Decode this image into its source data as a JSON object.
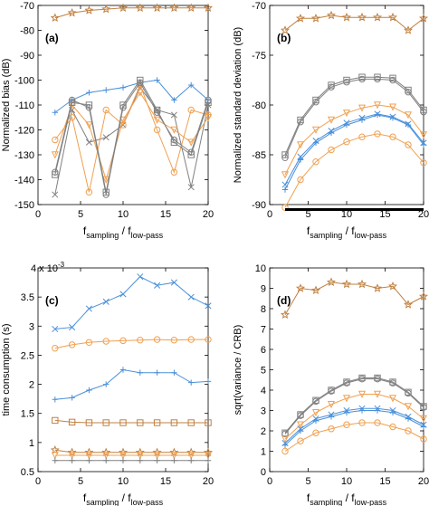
{
  "colors": {
    "blue": "#4a90d9",
    "orange": "#f0a050",
    "gray": "#808080",
    "tan": "#c08040",
    "black": "#000000"
  },
  "chart_data": [
    {
      "type": "line",
      "panel_label": "(a)",
      "xlabel_main": "f",
      "xlabel_sub1": "sampling",
      "xlabel_mid": " / f",
      "xlabel_sub2": "low-pass",
      "ylabel": "Normalized bias (dB)",
      "xlim": [
        0,
        20
      ],
      "ylim": [
        -150,
        -70
      ],
      "xticks": [
        0,
        5,
        10,
        15,
        20
      ],
      "yticks": [
        -150,
        -140,
        -130,
        -120,
        -110,
        -100,
        -90,
        -80,
        -70
      ],
      "exponent_label": "",
      "series": [
        {
          "color": "tan",
          "marker": "star",
          "x": [
            2,
            4,
            6,
            8,
            10,
            12,
            14,
            16,
            18,
            20
          ],
          "y": [
            -75,
            -73,
            -72,
            -71.5,
            -71,
            -71,
            -71,
            -71,
            -71,
            -71
          ]
        },
        {
          "color": "blue",
          "marker": "plus",
          "x": [
            2,
            4,
            6,
            8,
            10,
            12,
            14,
            16,
            18,
            20
          ],
          "y": [
            -113,
            -108,
            -105,
            -104,
            -103,
            -101,
            -100,
            -108,
            -102,
            -108
          ]
        },
        {
          "color": "gray",
          "marker": "x",
          "x": [
            2,
            4,
            6,
            8,
            10,
            12,
            14,
            16,
            18,
            20
          ],
          "y": [
            -146,
            -112,
            -125,
            -123,
            -118,
            -103,
            -112,
            -114,
            -143,
            -110
          ]
        },
        {
          "color": "orange",
          "marker": "triangle",
          "x": [
            2,
            4,
            6,
            8,
            10,
            12,
            14,
            16,
            18,
            20
          ],
          "y": [
            -130,
            -110,
            -118,
            -140,
            -116,
            -105,
            -116,
            -120,
            -125,
            -115
          ]
        },
        {
          "color": "orange",
          "marker": "circle",
          "x": [
            2,
            4,
            6,
            8,
            10,
            12,
            14,
            16,
            18,
            20
          ],
          "y": [
            -124,
            -115,
            -145,
            -112,
            -118,
            -102,
            -120,
            -137,
            -112,
            -114
          ]
        },
        {
          "color": "gray",
          "marker": "square",
          "x": [
            2,
            4,
            6,
            8,
            10,
            12,
            14,
            16,
            18,
            20
          ],
          "y": [
            -138,
            -109,
            -110,
            -145,
            -110,
            -100,
            -112,
            -125,
            -130,
            -109
          ]
        },
        {
          "color": "gray",
          "marker": "circle",
          "x": [
            2,
            4,
            6,
            8,
            10,
            12,
            14,
            16,
            18,
            20
          ],
          "y": [
            -137,
            -108,
            -111,
            -146,
            -111,
            -101,
            -113,
            -124,
            -129,
            -108
          ]
        }
      ]
    },
    {
      "type": "line",
      "panel_label": "(b)",
      "xlabel_main": "f",
      "xlabel_sub1": "sampling",
      "xlabel_mid": " / f",
      "xlabel_sub2": "low-pass",
      "ylabel": "Normalized standard deviation (dB)",
      "xlim": [
        0,
        20
      ],
      "ylim": [
        -90,
        -70
      ],
      "xticks": [
        0,
        5,
        10,
        15,
        20
      ],
      "yticks": [
        -90,
        -85,
        -80,
        -75,
        -70
      ],
      "exponent_label": "",
      "series": [
        {
          "color": "tan",
          "marker": "star",
          "x": [
            2,
            4,
            6,
            8,
            10,
            12,
            14,
            16,
            18,
            20
          ],
          "y": [
            -72.5,
            -71.3,
            -71.3,
            -71.0,
            -71.2,
            -71.2,
            -71.2,
            -71.2,
            -72.5,
            -71.3
          ]
        },
        {
          "color": "gray",
          "marker": "square",
          "x": [
            2,
            4,
            6,
            8,
            10,
            12,
            14,
            16,
            18,
            20
          ],
          "y": [
            -85.0,
            -81.5,
            -79.5,
            -78.0,
            -77.5,
            -77.2,
            -77.2,
            -77.3,
            -78.5,
            -80.5
          ]
        },
        {
          "color": "gray",
          "marker": "circle",
          "x": [
            2,
            4,
            6,
            8,
            10,
            12,
            14,
            16,
            18,
            20
          ],
          "y": [
            -85.3,
            -81.7,
            -79.7,
            -78.2,
            -77.7,
            -77.4,
            -77.4,
            -77.5,
            -78.7,
            -80.7
          ]
        },
        {
          "color": "orange",
          "marker": "triangle",
          "x": [
            2,
            4,
            6,
            8,
            10,
            12,
            14,
            16,
            18,
            20
          ],
          "y": [
            -87.0,
            -84.0,
            -82.5,
            -81.5,
            -80.8,
            -80.3,
            -80.0,
            -80.2,
            -81.0,
            -83.0
          ]
        },
        {
          "color": "blue",
          "marker": "plus",
          "x": [
            2,
            4,
            6,
            8,
            10,
            12,
            14,
            16,
            18,
            20
          ],
          "y": [
            -88.5,
            -85.5,
            -83.8,
            -82.8,
            -82.0,
            -81.5,
            -81.0,
            -81.3,
            -82.0,
            -84.0
          ]
        },
        {
          "color": "blue",
          "marker": "x",
          "x": [
            2,
            4,
            6,
            8,
            10,
            12,
            14,
            16,
            18,
            20
          ],
          "y": [
            -88.0,
            -85.2,
            -83.6,
            -82.6,
            -81.8,
            -81.3,
            -80.9,
            -81.2,
            -81.9,
            -83.8
          ]
        },
        {
          "color": "orange",
          "marker": "circle",
          "x": [
            2,
            4,
            6,
            8,
            10,
            12,
            14,
            16,
            18,
            20
          ],
          "y": [
            -90.3,
            -87.5,
            -85.7,
            -84.5,
            -83.7,
            -83.2,
            -82.9,
            -83.2,
            -84.0,
            -85.8
          ]
        },
        {
          "color": "black",
          "marker": "none",
          "width": 3,
          "x": [
            2,
            20
          ],
          "y": [
            -90.5,
            -90.5
          ]
        }
      ]
    },
    {
      "type": "line",
      "panel_label": "(c)",
      "xlabel_main": "f",
      "xlabel_sub1": "sampling",
      "xlabel_mid": " / f",
      "xlabel_sub2": "low-pass",
      "ylabel": "time consumption (s)",
      "xlim": [
        0,
        20
      ],
      "ylim": [
        0.5,
        4
      ],
      "xticks": [
        0,
        5,
        10,
        15,
        20
      ],
      "yticks": [
        0.5,
        1,
        1.5,
        2,
        2.5,
        3,
        3.5,
        4
      ],
      "exponent_label": "4 x 10",
      "exponent_power": "-3",
      "series": [
        {
          "color": "blue",
          "marker": "x",
          "x": [
            2,
            4,
            6,
            8,
            10,
            12,
            14,
            16,
            18,
            20
          ],
          "y": [
            2.95,
            2.98,
            3.3,
            3.42,
            3.55,
            3.85,
            3.7,
            3.75,
            3.5,
            3.35
          ]
        },
        {
          "color": "orange",
          "marker": "circle",
          "x": [
            2,
            4,
            6,
            8,
            10,
            12,
            14,
            16,
            18,
            20
          ],
          "y": [
            2.62,
            2.68,
            2.72,
            2.74,
            2.75,
            2.76,
            2.77,
            2.76,
            2.77,
            2.77
          ]
        },
        {
          "color": "blue",
          "marker": "plus",
          "x": [
            2,
            4,
            6,
            8,
            10,
            12,
            14,
            16,
            18,
            20
          ],
          "y": [
            1.74,
            1.77,
            1.9,
            2.0,
            2.25,
            2.2,
            2.2,
            2.2,
            2.03,
            2.05
          ]
        },
        {
          "color": "tan",
          "marker": "square",
          "x": [
            2,
            4,
            6,
            8,
            10,
            12,
            14,
            16,
            18,
            20
          ],
          "y": [
            1.38,
            1.35,
            1.34,
            1.34,
            1.34,
            1.34,
            1.34,
            1.34,
            1.34,
            1.34
          ]
        },
        {
          "color": "tan",
          "marker": "star",
          "x": [
            2,
            4,
            6,
            8,
            10,
            12,
            14,
            16,
            18,
            20
          ],
          "y": [
            0.87,
            0.83,
            0.83,
            0.83,
            0.83,
            0.83,
            0.83,
            0.83,
            0.83,
            0.83
          ]
        },
        {
          "color": "orange",
          "marker": "triangle",
          "x": [
            2,
            4,
            6,
            8,
            10,
            12,
            14,
            16,
            18,
            20
          ],
          "y": [
            0.78,
            0.78,
            0.78,
            0.78,
            0.78,
            0.78,
            0.78,
            0.78,
            0.78,
            0.78
          ]
        },
        {
          "color": "gray",
          "marker": "plus",
          "x": [
            2,
            4,
            6,
            8,
            10,
            12,
            14,
            16,
            18,
            20
          ],
          "y": [
            0.69,
            0.69,
            0.69,
            0.69,
            0.69,
            0.69,
            0.69,
            0.69,
            0.69,
            0.69
          ]
        }
      ]
    },
    {
      "type": "line",
      "panel_label": "(d)",
      "xlabel_main": "f",
      "xlabel_sub1": "sampling",
      "xlabel_mid": " / f",
      "xlabel_sub2": "low-pass",
      "ylabel": "sqrt(variance / CRB)",
      "xlim": [
        0,
        20
      ],
      "ylim": [
        0,
        10
      ],
      "xticks": [
        0,
        5,
        10,
        15,
        20
      ],
      "yticks": [
        0,
        1,
        2,
        3,
        4,
        5,
        6,
        7,
        8,
        9,
        10
      ],
      "exponent_label": "",
      "series": [
        {
          "color": "tan",
          "marker": "star",
          "x": [
            2,
            4,
            6,
            8,
            10,
            12,
            14,
            16,
            18,
            20
          ],
          "y": [
            7.7,
            9.0,
            8.9,
            9.3,
            9.2,
            9.2,
            9.0,
            9.1,
            8.2,
            8.6
          ]
        },
        {
          "color": "gray",
          "marker": "square",
          "x": [
            2,
            4,
            6,
            8,
            10,
            12,
            14,
            16,
            18,
            20
          ],
          "y": [
            1.9,
            2.8,
            3.5,
            4.0,
            4.4,
            4.6,
            4.6,
            4.4,
            3.9,
            3.2
          ]
        },
        {
          "color": "gray",
          "marker": "circle",
          "x": [
            2,
            4,
            6,
            8,
            10,
            12,
            14,
            16,
            18,
            20
          ],
          "y": [
            1.85,
            2.75,
            3.45,
            3.95,
            4.35,
            4.55,
            4.55,
            4.35,
            3.85,
            3.15
          ]
        },
        {
          "color": "orange",
          "marker": "triangle",
          "x": [
            2,
            4,
            6,
            8,
            10,
            12,
            14,
            16,
            18,
            20
          ],
          "y": [
            1.6,
            2.3,
            2.9,
            3.3,
            3.6,
            3.8,
            3.8,
            3.6,
            3.2,
            2.6
          ]
        },
        {
          "color": "blue",
          "marker": "plus",
          "x": [
            2,
            4,
            6,
            8,
            10,
            12,
            14,
            16,
            18,
            20
          ],
          "y": [
            1.3,
            2.0,
            2.5,
            2.7,
            2.9,
            3.0,
            3.0,
            2.9,
            2.6,
            2.2
          ]
        },
        {
          "color": "blue",
          "marker": "x",
          "x": [
            2,
            4,
            6,
            8,
            10,
            12,
            14,
            16,
            18,
            20
          ],
          "y": [
            1.4,
            2.1,
            2.6,
            2.8,
            3.0,
            3.1,
            3.1,
            3.0,
            2.7,
            2.3
          ]
        },
        {
          "color": "orange",
          "marker": "circle",
          "x": [
            2,
            4,
            6,
            8,
            10,
            12,
            14,
            16,
            18,
            20
          ],
          "y": [
            1.0,
            1.5,
            1.9,
            2.1,
            2.3,
            2.4,
            2.4,
            2.2,
            2.0,
            1.6
          ]
        }
      ]
    }
  ]
}
